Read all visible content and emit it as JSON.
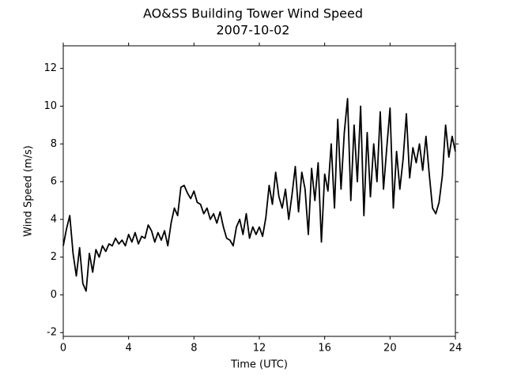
{
  "chart_data": {
    "type": "line",
    "title": "AO&SS Building Tower Wind Speed",
    "subtitle": "2007-10-02",
    "x_label": "Time (UTC)",
    "y_label": "Wind Speed (m/s)",
    "xlim": [
      0,
      24
    ],
    "xticks": [
      0,
      4,
      8,
      12,
      16,
      20,
      24
    ],
    "ylim": [
      -2.2,
      13.2
    ],
    "yticks": [
      -2,
      0,
      2,
      4,
      6,
      8,
      10,
      12
    ],
    "grid": false,
    "series": [
      {
        "color": "#000000",
        "x": [
          0,
          0.2,
          0.4,
          0.6,
          0.8,
          1,
          1.2,
          1.4,
          1.6,
          1.8,
          2,
          2.2,
          2.4,
          2.6,
          2.8,
          3,
          3.2,
          3.4,
          3.6,
          3.8,
          4,
          4.2,
          4.4,
          4.6,
          4.8,
          5,
          5.2,
          5.4,
          5.6,
          5.8,
          6,
          6.2,
          6.4,
          6.6,
          6.8,
          7,
          7.2,
          7.4,
          7.6,
          7.8,
          8,
          8.2,
          8.4,
          8.6,
          8.8,
          9,
          9.2,
          9.4,
          9.6,
          9.8,
          10,
          10.2,
          10.4,
          10.6,
          10.8,
          11,
          11.2,
          11.4,
          11.6,
          11.8,
          12,
          12.2,
          12.4,
          12.6,
          12.8,
          13,
          13.2,
          13.4,
          13.6,
          13.8,
          14,
          14.2,
          14.4,
          14.6,
          14.8,
          15,
          15.2,
          15.4,
          15.6,
          15.8,
          16,
          16.2,
          16.4,
          16.6,
          16.8,
          17,
          17.2,
          17.4,
          17.6,
          17.8,
          18,
          18.2,
          18.4,
          18.6,
          18.8,
          19,
          19.2,
          19.4,
          19.6,
          19.8,
          20,
          20.2,
          20.4,
          20.6,
          20.8,
          21,
          21.2,
          21.4,
          21.6,
          21.8,
          22,
          22.2,
          22.4,
          22.6,
          22.8,
          23,
          23.2,
          23.4,
          23.6,
          23.8,
          24
        ],
        "values": [
          2.6,
          3.5,
          4.2,
          2.2,
          1.0,
          2.5,
          0.6,
          0.2,
          2.2,
          1.2,
          2.4,
          2.0,
          2.6,
          2.3,
          2.7,
          2.6,
          3.0,
          2.7,
          2.9,
          2.6,
          3.2,
          2.8,
          3.3,
          2.7,
          3.1,
          3.0,
          3.7,
          3.4,
          2.8,
          3.3,
          2.9,
          3.4,
          2.6,
          3.8,
          4.6,
          4.2,
          5.7,
          5.8,
          5.4,
          5.1,
          5.5,
          4.9,
          4.8,
          4.3,
          4.6,
          4.0,
          4.3,
          3.8,
          4.4,
          3.6,
          3.0,
          2.9,
          2.6,
          3.6,
          4.0,
          3.2,
          4.3,
          3.0,
          3.6,
          3.2,
          3.6,
          3.1,
          4.1,
          5.8,
          4.8,
          6.5,
          5.2,
          4.6,
          5.6,
          4.0,
          5.3,
          6.8,
          4.4,
          6.5,
          5.6,
          3.2,
          6.7,
          5.0,
          7.0,
          2.8,
          6.4,
          5.5,
          8.0,
          4.6,
          9.3,
          5.6,
          8.6,
          10.4,
          5.0,
          9.0,
          6.0,
          10.0,
          4.2,
          8.6,
          5.2,
          8.0,
          6.0,
          9.7,
          5.6,
          7.8,
          9.9,
          4.6,
          7.6,
          5.6,
          7.2,
          9.6,
          6.2,
          7.8,
          7.0,
          8.0,
          6.6,
          8.4,
          6.4,
          4.6,
          4.3,
          4.9,
          6.3,
          9.0,
          7.3,
          8.4,
          7.6
        ]
      }
    ]
  }
}
